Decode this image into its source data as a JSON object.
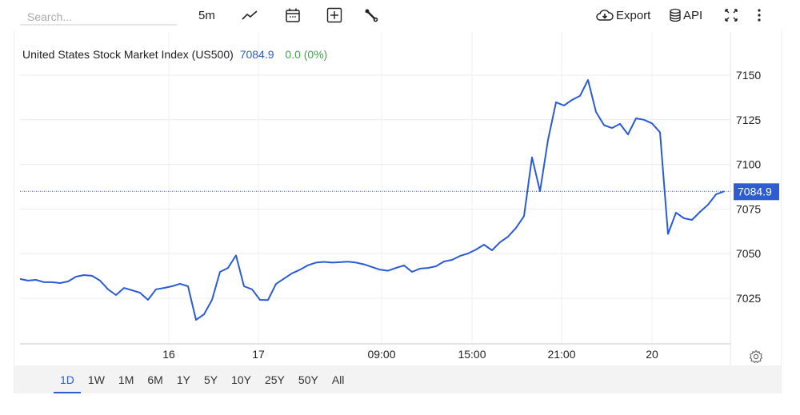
{
  "toolbar": {
    "search_placeholder": "Search...",
    "interval": "5m",
    "export_label": "Export",
    "api_label": "API",
    "icons": [
      "line-chart-icon",
      "calendar-icon",
      "add-box-icon",
      "wrench-icon",
      "cloud-download-icon",
      "database-icon",
      "fullscreen-icon",
      "more-vertical-icon"
    ]
  },
  "legend": {
    "title": "United States Stock Market Index (US500)",
    "price": "7084.9",
    "change": "0.0 (0%)"
  },
  "colors": {
    "line": "#2a5bd7",
    "accent": "#2f5ccf",
    "positive": "#3aa845",
    "badge": "#2f5ccf"
  },
  "chart_data": {
    "type": "line",
    "title": "United States Stock Market Index (US500)",
    "xlabel": "",
    "ylabel": "",
    "ylim": [
      7003,
      7159
    ],
    "y_ticks": [
      7025,
      7050,
      7075,
      7100,
      7125,
      7150
    ],
    "x_ticks": [
      {
        "label": "16",
        "index": 18.6
      },
      {
        "label": "17",
        "index": 29.8
      },
      {
        "label": "09:00",
        "index": 45.2
      },
      {
        "label": "15:00",
        "index": 56.5
      },
      {
        "label": "21:00",
        "index": 67.7
      },
      {
        "label": "20",
        "index": 79
      }
    ],
    "last_price": 7084.9,
    "last_price_label": "7084.9",
    "grid": true,
    "values": [
      7035.8,
      7034.9,
      7035.3,
      7034.0,
      7034.0,
      7033.5,
      7034.4,
      7037.1,
      7038.0,
      7037.6,
      7034.9,
      7030.0,
      7026.8,
      7030.8,
      7029.5,
      7028.1,
      7024.1,
      7030.0,
      7030.8,
      7031.7,
      7033.1,
      7031.7,
      7012.9,
      7016.0,
      7024.1,
      7039.8,
      7042.0,
      7049.0,
      7031.7,
      7030.0,
      7024.1,
      7024.0,
      7033.0,
      7036.0,
      7039.0,
      7041.0,
      7043.5,
      7045.0,
      7045.4,
      7045.0,
      7045.2,
      7045.5,
      7045.0,
      7044.0,
      7042.5,
      7041.0,
      7040.4,
      7042.0,
      7043.4,
      7039.8,
      7041.6,
      7042.0,
      7042.9,
      7045.6,
      7046.5,
      7048.7,
      7050.1,
      7052.3,
      7055.0,
      7051.9,
      7056.4,
      7059.5,
      7064.4,
      7071.0,
      7104.0,
      7085.0,
      7113.7,
      7134.8,
      7133.0,
      7136.1,
      7138.4,
      7147.3,
      7129.4,
      7122.0,
      7120.4,
      7122.7,
      7116.8,
      7125.8,
      7125.0,
      7123.0,
      7118.0,
      7061.0,
      7073.0,
      7069.8,
      7068.9,
      7073.4,
      7077.4,
      7083.2,
      7084.9
    ]
  },
  "ranges": [
    "1D",
    "1W",
    "1M",
    "6M",
    "1Y",
    "5Y",
    "10Y",
    "25Y",
    "50Y",
    "All"
  ],
  "active_range": "1D"
}
